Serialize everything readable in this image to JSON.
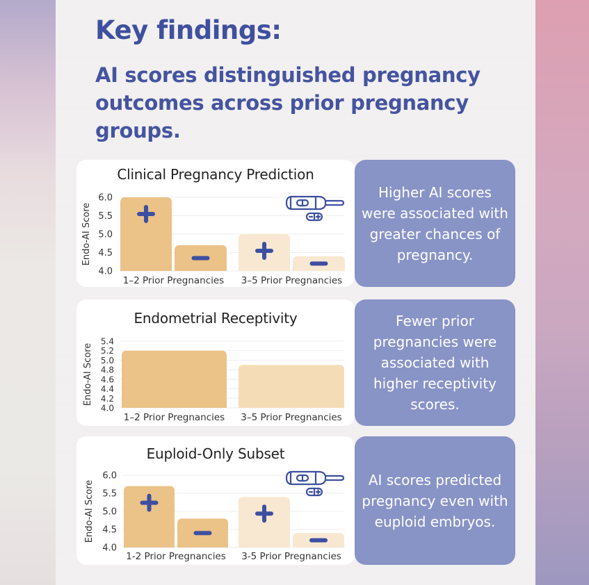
{
  "header": {
    "title": "Key findings:",
    "subtitle": "AI scores distinguished pregnancy outcomes across prior pregnancy groups."
  },
  "colors": {
    "title_text": "#3f509f",
    "panel_bg": "#8893c6",
    "bar_group1": "#ebc287",
    "bar_group2": "#f8e8d2",
    "bar_group2_receptivity": "#f4dcb6",
    "marker": "#3d4fa0"
  },
  "panels": [
    {
      "text": "Higher AI scores were associated with greater chances of pregnancy."
    },
    {
      "text": "Fewer prior pregnancies were associated with higher receptivity scores."
    },
    {
      "text": "AI scores predicted pregnancy even with euploid embryos."
    }
  ],
  "icons": {
    "pregnancy_test": "pregnancy-test-icon",
    "positive": "plus-icon",
    "negative": "minus-icon"
  },
  "chart_data": [
    {
      "type": "bar",
      "title": "Clinical Pregnancy Prediction",
      "ylabel": "Endo-AI Score",
      "xlabel": "",
      "ylim": [
        4.0,
        6.0
      ],
      "yticks": [
        "4.0",
        "4.5",
        "5.0",
        "5.5",
        "6.0"
      ],
      "ytick_values": [
        4.0,
        4.5,
        5.0,
        5.5,
        6.0
      ],
      "grid": true,
      "categories": [
        "1–2 Prior Pregnancies",
        "3–5 Prior Pregnancies"
      ],
      "series": [
        {
          "name": "Pregnant (+)",
          "marker": "plus",
          "values": [
            6.0,
            5.0
          ]
        },
        {
          "name": "Not pregnant (−)",
          "marker": "minus",
          "values": [
            4.7,
            4.4
          ]
        }
      ],
      "show_test_icon": true
    },
    {
      "type": "bar",
      "title": "Endometrial Receptivity",
      "ylabel": "Endo-AI Score",
      "xlabel": "",
      "ylim": [
        4.0,
        5.4
      ],
      "yticks": [
        "4.0",
        "4.2",
        "4.4",
        "4.6",
        "4.8",
        "5.0",
        "5.2",
        "5.4"
      ],
      "ytick_values": [
        4.0,
        4.2,
        4.4,
        4.6,
        4.8,
        5.0,
        5.2,
        5.4
      ],
      "grid": true,
      "categories": [
        "1–2 Prior Pregnancies",
        "3–5 Prior Pregnancies"
      ],
      "series": [
        {
          "name": "Receptivity",
          "marker": "none",
          "values": [
            5.2,
            4.9
          ]
        }
      ],
      "show_test_icon": false
    },
    {
      "type": "bar",
      "title": "Euploid-Only Subset",
      "ylabel": "Endo-AI Score",
      "xlabel": "",
      "ylim": [
        4.0,
        6.0
      ],
      "yticks": [
        "4.0",
        "4.5",
        "5.0",
        "5.5",
        "6.0"
      ],
      "ytick_values": [
        4.0,
        4.5,
        5.0,
        5.5,
        6.0
      ],
      "grid": true,
      "categories": [
        "1-2 Prior Pregnancies",
        "3-5 Prior Pregnancies"
      ],
      "series": [
        {
          "name": "Pregnant (+)",
          "marker": "plus",
          "values": [
            5.7,
            5.4
          ]
        },
        {
          "name": "Not pregnant (−)",
          "marker": "minus",
          "values": [
            4.8,
            4.4
          ]
        }
      ],
      "show_test_icon": true
    }
  ]
}
